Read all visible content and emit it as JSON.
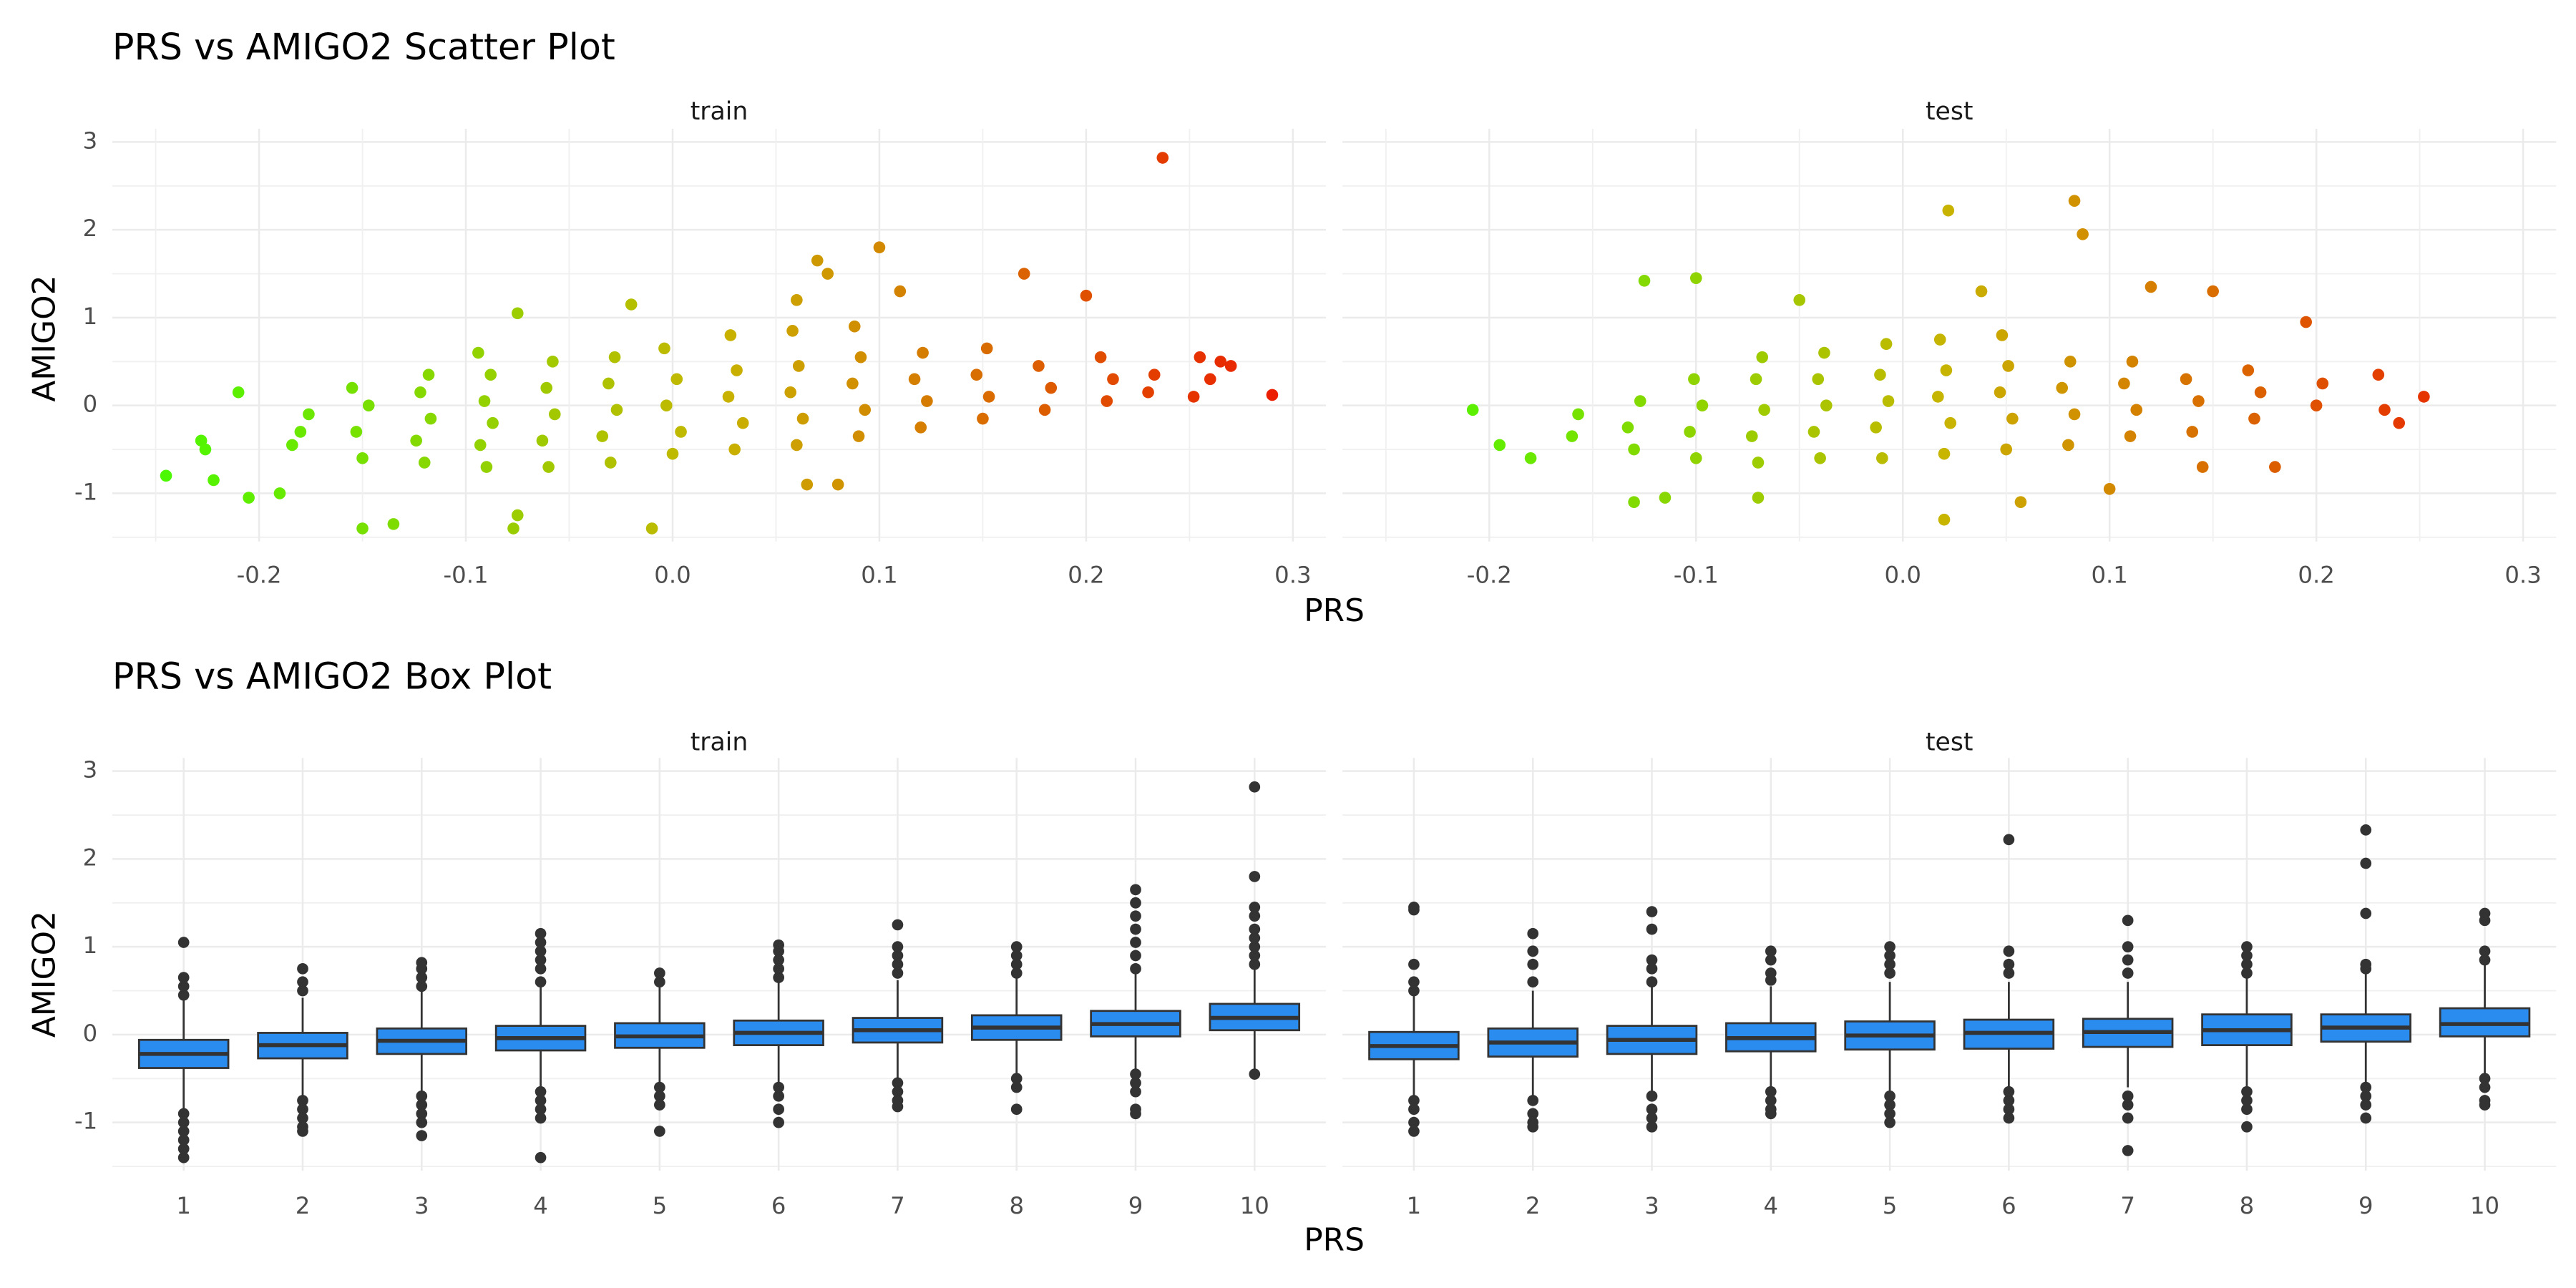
{
  "chart_data": [
    {
      "type": "scatter",
      "title": "PRS vs AMIGO2 Scatter Plot",
      "x_label": "PRS",
      "y_label": "AMIGO2",
      "xlim": [
        -0.271,
        0.316
      ],
      "xticks": [
        -0.2,
        -0.1,
        {
          "value": 0,
          "label": "0.0"
        },
        0.1,
        0.2,
        0.3
      ],
      "ylim": [
        -1.55,
        3.15
      ],
      "yticks": [
        -1,
        0,
        1,
        2,
        3
      ],
      "grid": true,
      "color_scale": [
        "#40ff00",
        "#c8b400",
        "#ee1000"
      ],
      "facets": [
        {
          "name": "train",
          "x": [
            -0.245,
            -0.228,
            -0.226,
            -0.222,
            -0.21,
            -0.205,
            -0.19,
            -0.15,
            -0.135,
            -0.075,
            -0.077,
            -0.01,
            -0.075,
            -0.02,
            0.07,
            0.075,
            0.1,
            0.17,
            0.2,
            0.237,
            0.255,
            0.26,
            0.265,
            0.27,
            0.29,
            0.252,
            0.065,
            0.08,
            0.11,
            0.06,
            -0.18,
            -0.176,
            -0.184,
            -0.15,
            -0.153,
            -0.147,
            -0.155,
            -0.12,
            -0.124,
            -0.117,
            -0.122,
            -0.118,
            -0.09,
            -0.093,
            -0.087,
            -0.091,
            -0.088,
            -0.094,
            -0.06,
            -0.063,
            -0.057,
            -0.061,
            -0.058,
            -0.03,
            -0.034,
            -0.027,
            -0.031,
            -0.028,
            0,
            0.004,
            -0.003,
            0.002,
            -0.004,
            0.03,
            0.034,
            0.027,
            0.031,
            0.028,
            0.06,
            0.063,
            0.057,
            0.061,
            0.058,
            0.09,
            0.093,
            0.087,
            0.091,
            0.088,
            0.12,
            0.123,
            0.117,
            0.121,
            0.15,
            0.153,
            0.147,
            0.152,
            0.18,
            0.183,
            0.177,
            0.21,
            0.213,
            0.207,
            0.23,
            0.233
          ],
          "y": [
            -0.8,
            -0.4,
            -0.5,
            -0.85,
            0.15,
            -1.05,
            -1.0,
            -1.4,
            -1.35,
            -1.25,
            -1.4,
            -1.4,
            1.05,
            1.15,
            1.65,
            1.5,
            1.8,
            1.5,
            1.25,
            2.82,
            0.55,
            0.3,
            0.5,
            0.45,
            0.12,
            0.1,
            -0.9,
            -0.9,
            1.3,
            1.2,
            -0.3,
            -0.1,
            -0.45,
            -0.6,
            -0.3,
            0.0,
            0.2,
            -0.65,
            -0.4,
            -0.15,
            0.15,
            0.35,
            -0.7,
            -0.45,
            -0.2,
            0.05,
            0.35,
            0.6,
            -0.7,
            -0.4,
            -0.1,
            0.2,
            0.5,
            -0.65,
            -0.35,
            -0.05,
            0.25,
            0.55,
            -0.55,
            -0.3,
            0.0,
            0.3,
            0.65,
            -0.5,
            -0.2,
            0.1,
            0.4,
            0.8,
            -0.45,
            -0.15,
            0.15,
            0.45,
            0.85,
            -0.35,
            -0.05,
            0.25,
            0.55,
            0.9,
            -0.25,
            0.05,
            0.3,
            0.6,
            -0.15,
            0.1,
            0.35,
            0.65,
            -0.05,
            0.2,
            0.45,
            0.05,
            0.3,
            0.55,
            0.15,
            0.35
          ]
        },
        {
          "name": "test",
          "x": [
            -0.208,
            -0.195,
            -0.18,
            -0.125,
            -0.1,
            -0.115,
            -0.13,
            0.022,
            0.083,
            0.087,
            0.038,
            0.02,
            0.057,
            0.12,
            0.15,
            0.195,
            0.23,
            0.233,
            0.252,
            0.24,
            0.18,
            0.145,
            0.1,
            -0.05,
            -0.07,
            -0.16,
            -0.157,
            -0.13,
            -0.133,
            -0.127,
            -0.1,
            -0.103,
            -0.097,
            -0.101,
            -0.07,
            -0.073,
            -0.067,
            -0.071,
            -0.068,
            -0.04,
            -0.043,
            -0.037,
            -0.041,
            -0.038,
            -0.01,
            -0.013,
            -0.007,
            -0.011,
            -0.008,
            0.02,
            0.023,
            0.017,
            0.021,
            0.018,
            0.05,
            0.053,
            0.047,
            0.051,
            0.048,
            0.08,
            0.083,
            0.077,
            0.081,
            0.11,
            0.113,
            0.107,
            0.111,
            0.14,
            0.143,
            0.137,
            0.17,
            0.173,
            0.167,
            0.2,
            0.203
          ],
          "y": [
            -0.05,
            -0.45,
            -0.6,
            1.42,
            1.45,
            -1.05,
            -1.1,
            2.22,
            2.33,
            1.95,
            1.3,
            -1.3,
            -1.1,
            1.35,
            1.3,
            0.95,
            0.35,
            -0.05,
            0.1,
            -0.2,
            -0.7,
            -0.7,
            -0.95,
            1.2,
            -1.05,
            -0.35,
            -0.1,
            -0.5,
            -0.25,
            0.05,
            -0.6,
            -0.3,
            0.0,
            0.3,
            -0.65,
            -0.35,
            -0.05,
            0.3,
            0.55,
            -0.6,
            -0.3,
            0.0,
            0.3,
            0.6,
            -0.6,
            -0.25,
            0.05,
            0.35,
            0.7,
            -0.55,
            -0.2,
            0.1,
            0.4,
            0.75,
            -0.5,
            -0.15,
            0.15,
            0.45,
            0.8,
            -0.45,
            -0.1,
            0.2,
            0.5,
            -0.35,
            -0.05,
            0.25,
            0.5,
            -0.3,
            0.05,
            0.3,
            -0.15,
            0.15,
            0.4,
            0.0,
            0.25
          ]
        }
      ]
    },
    {
      "type": "box",
      "title": "PRS vs AMIGO2 Box Plot",
      "x_label": "PRS",
      "y_label": "AMIGO2",
      "categories": [
        "1",
        "2",
        "3",
        "4",
        "5",
        "6",
        "7",
        "8",
        "9",
        "10"
      ],
      "ylim": [
        -1.55,
        3.15
      ],
      "yticks": [
        -1,
        0,
        1,
        2,
        3
      ],
      "grid": true,
      "color": "#2b8cf0",
      "facets": [
        {
          "name": "train",
          "boxes": [
            {
              "low": -0.85,
              "q1": -0.38,
              "median": -0.22,
              "q3": -0.06,
              "high": 0.4,
              "outliers": [
                0.45,
                0.55,
                0.65,
                1.05,
                -0.9,
                -1.0,
                -1.1,
                -1.2,
                -1.3,
                -1.4
              ]
            },
            {
              "low": -0.7,
              "q1": -0.27,
              "median": -0.12,
              "q3": 0.02,
              "high": 0.42,
              "outliers": [
                0.5,
                0.6,
                0.75,
                -0.75,
                -0.85,
                -0.95,
                -1.05,
                -1.1
              ]
            },
            {
              "low": -0.65,
              "q1": -0.22,
              "median": -0.07,
              "q3": 0.07,
              "high": 0.5,
              "outliers": [
                0.55,
                0.65,
                0.75,
                0.82,
                -0.7,
                -0.8,
                -0.9,
                -1.0,
                -1.15
              ]
            },
            {
              "low": -0.6,
              "q1": -0.18,
              "median": -0.04,
              "q3": 0.1,
              "high": 0.55,
              "outliers": [
                0.6,
                0.75,
                0.85,
                0.95,
                1.05,
                1.15,
                -0.65,
                -0.75,
                -0.85,
                -0.95,
                -1.4
              ]
            },
            {
              "low": -0.55,
              "q1": -0.15,
              "median": -0.02,
              "q3": 0.13,
              "high": 0.55,
              "outliers": [
                0.6,
                0.7,
                -0.6,
                -0.7,
                -0.8,
                -1.1
              ]
            },
            {
              "low": -0.55,
              "q1": -0.12,
              "median": 0.02,
              "q3": 0.16,
              "high": 0.6,
              "outliers": [
                0.65,
                0.75,
                0.85,
                0.95,
                1.02,
                -0.6,
                -0.7,
                -0.85,
                -1.0
              ]
            },
            {
              "low": -0.5,
              "q1": -0.09,
              "median": 0.05,
              "q3": 0.19,
              "high": 0.62,
              "outliers": [
                0.7,
                0.8,
                0.9,
                1.0,
                1.25,
                -0.55,
                -0.65,
                -0.75,
                -0.82
              ]
            },
            {
              "low": -0.45,
              "q1": -0.06,
              "median": 0.08,
              "q3": 0.22,
              "high": 0.65,
              "outliers": [
                0.7,
                0.8,
                0.9,
                1.0,
                -0.5,
                -0.6,
                -0.85
              ]
            },
            {
              "low": -0.42,
              "q1": -0.02,
              "median": 0.12,
              "q3": 0.27,
              "high": 0.7,
              "outliers": [
                0.75,
                0.9,
                1.05,
                1.2,
                1.35,
                1.5,
                1.65,
                -0.45,
                -0.55,
                -0.65,
                -0.85,
                -0.9
              ]
            },
            {
              "low": -0.4,
              "q1": 0.05,
              "median": 0.19,
              "q3": 0.35,
              "high": 0.75,
              "outliers": [
                0.8,
                0.9,
                1.0,
                1.1,
                1.2,
                1.35,
                1.45,
                1.8,
                2.82,
                -0.45
              ]
            }
          ]
        },
        {
          "name": "test",
          "boxes": [
            {
              "low": -0.7,
              "q1": -0.28,
              "median": -0.13,
              "q3": 0.03,
              "high": 0.45,
              "outliers": [
                0.5,
                0.6,
                0.8,
                1.42,
                1.45,
                -0.75,
                -0.85,
                -1.0,
                -1.1
              ]
            },
            {
              "low": -0.7,
              "q1": -0.25,
              "median": -0.09,
              "q3": 0.07,
              "high": 0.5,
              "outliers": [
                0.6,
                0.8,
                0.95,
                1.15,
                -0.75,
                -0.9,
                -1.0,
                -1.05
              ]
            },
            {
              "low": -0.65,
              "q1": -0.22,
              "median": -0.06,
              "q3": 0.1,
              "high": 0.55,
              "outliers": [
                0.6,
                0.75,
                0.85,
                1.2,
                1.4,
                -0.7,
                -0.85,
                -0.95,
                -1.05
              ]
            },
            {
              "low": -0.6,
              "q1": -0.19,
              "median": -0.04,
              "q3": 0.13,
              "high": 0.55,
              "outliers": [
                0.62,
                0.7,
                0.85,
                0.95,
                -0.65,
                -0.75,
                -0.85,
                -0.9
              ]
            },
            {
              "low": -0.65,
              "q1": -0.17,
              "median": -0.01,
              "q3": 0.15,
              "high": 0.6,
              "outliers": [
                0.7,
                0.8,
                0.9,
                1.0,
                -0.7,
                -0.8,
                -0.9,
                -1.0
              ]
            },
            {
              "low": -0.6,
              "q1": -0.16,
              "median": 0.02,
              "q3": 0.17,
              "high": 0.6,
              "outliers": [
                0.7,
                0.8,
                0.95,
                2.22,
                -0.65,
                -0.75,
                -0.85,
                -0.95
              ]
            },
            {
              "low": -0.6,
              "q1": -0.14,
              "median": 0.03,
              "q3": 0.18,
              "high": 0.6,
              "outliers": [
                0.7,
                0.85,
                1.0,
                1.3,
                -0.7,
                -0.8,
                -0.95,
                -1.32
              ]
            },
            {
              "low": -0.6,
              "q1": -0.12,
              "median": 0.05,
              "q3": 0.23,
              "high": 0.65,
              "outliers": [
                0.7,
                0.8,
                0.9,
                1.0,
                -0.65,
                -0.75,
                -0.85,
                -1.05
              ]
            },
            {
              "low": -0.55,
              "q1": -0.08,
              "median": 0.08,
              "q3": 0.23,
              "high": 0.7,
              "outliers": [
                0.75,
                0.8,
                1.38,
                1.95,
                2.33,
                -0.6,
                -0.7,
                -0.8,
                -0.95
              ]
            },
            {
              "low": -0.45,
              "q1": -0.02,
              "median": 0.12,
              "q3": 0.3,
              "high": 0.8,
              "outliers": [
                0.85,
                0.95,
                1.3,
                1.38,
                -0.5,
                -0.6,
                -0.75,
                -0.8
              ]
            }
          ]
        }
      ]
    }
  ]
}
